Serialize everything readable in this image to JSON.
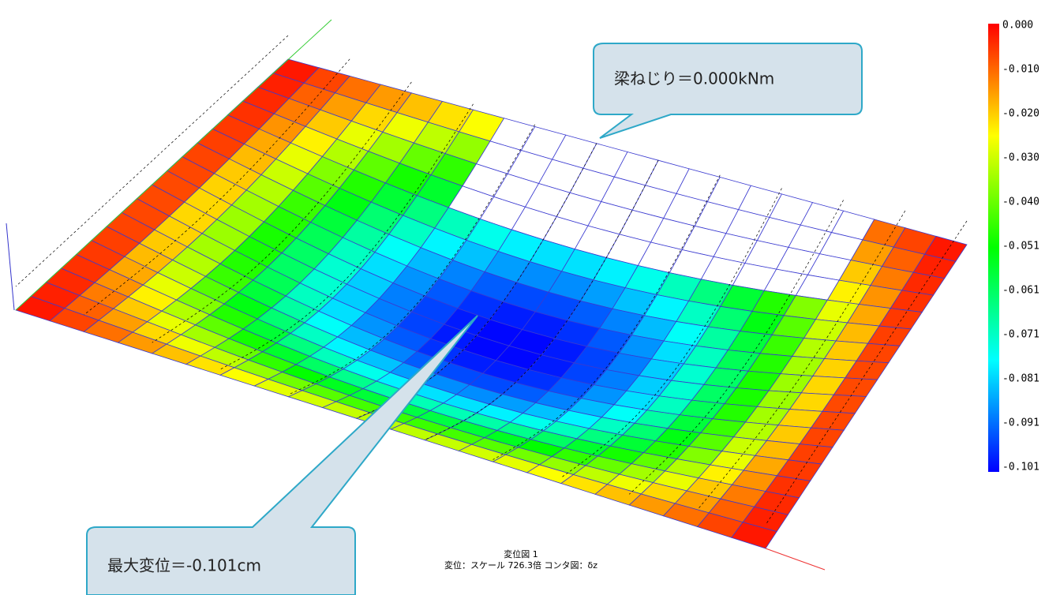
{
  "callouts": {
    "top": "梁ねじり＝0.000kNm",
    "bottom": "最大変位＝-0.101cm"
  },
  "caption": {
    "line1": "変位図 1",
    "line2": "変位：スケール 726.3倍 コンタ図：δz"
  },
  "colorbar": {
    "labels": [
      "0.000",
      "-0.010",
      "-0.020",
      "-0.030",
      "-0.040",
      "-0.051",
      "-0.061",
      "-0.071",
      "-0.081",
      "-0.091",
      "-0.101"
    ]
  }
}
